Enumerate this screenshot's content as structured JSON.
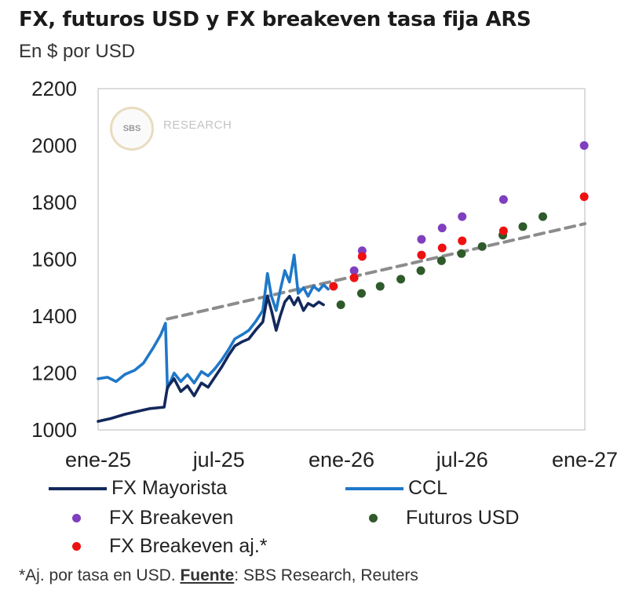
{
  "title": "FX, futuros USD y FX breakeven tasa fija ARS",
  "subtitle": "En $ por USD",
  "watermark": {
    "logo": "SBS",
    "text": "RESEARCH"
  },
  "footnote": {
    "prefix": "*Aj. por tasa en USD. ",
    "source_label": "Fuente",
    "source_text": ": SBS Research, Reuters"
  },
  "colors": {
    "fx_mayorista": "#13285c",
    "ccl": "#1f78c8",
    "fx_breakeven": "#7f3fbf",
    "futuros": "#2f5a2a",
    "fx_breakeven_aj": "#ee1111",
    "trend": "#8c8c8c",
    "axis": "#d0d0d0"
  },
  "chart_data": {
    "type": "line",
    "x_axis": {
      "ticks": [
        "ene-25",
        "jul-25",
        "ene-26",
        "jul-26",
        "ene-27"
      ],
      "tick_dates": [
        "2025-01-01",
        "2025-07-01",
        "2026-01-01",
        "2026-07-01",
        "2027-01-01"
      ],
      "range": [
        "2025-01-01",
        "2027-01-01"
      ]
    },
    "y_axis": {
      "ticks": [
        1000,
        1200,
        1400,
        1600,
        1800,
        2000,
        2200
      ],
      "range": [
        1000,
        2200
      ]
    },
    "grid": false,
    "legend_placement": "bottom",
    "series": [
      {
        "name": "FX Mayorista",
        "type": "line",
        "points": [
          [
            "2025-01-01",
            1030
          ],
          [
            "2025-01-20",
            1040
          ],
          [
            "2025-02-10",
            1055
          ],
          [
            "2025-03-01",
            1065
          ],
          [
            "2025-03-20",
            1075
          ],
          [
            "2025-04-10",
            1080
          ],
          [
            "2025-04-15",
            1150
          ],
          [
            "2025-04-25",
            1180
          ],
          [
            "2025-05-05",
            1135
          ],
          [
            "2025-05-15",
            1155
          ],
          [
            "2025-05-25",
            1120
          ],
          [
            "2025-06-05",
            1165
          ],
          [
            "2025-06-15",
            1150
          ],
          [
            "2025-06-25",
            1185
          ],
          [
            "2025-07-05",
            1220
          ],
          [
            "2025-07-15",
            1260
          ],
          [
            "2025-07-25",
            1295
          ],
          [
            "2025-08-05",
            1310
          ],
          [
            "2025-08-15",
            1320
          ],
          [
            "2025-08-25",
            1350
          ],
          [
            "2025-09-05",
            1380
          ],
          [
            "2025-09-12",
            1470
          ],
          [
            "2025-09-18",
            1420
          ],
          [
            "2025-09-25",
            1350
          ],
          [
            "2025-10-01",
            1400
          ],
          [
            "2025-10-08",
            1450
          ],
          [
            "2025-10-15",
            1470
          ],
          [
            "2025-10-22",
            1440
          ],
          [
            "2025-10-28",
            1465
          ],
          [
            "2025-11-05",
            1420
          ],
          [
            "2025-11-12",
            1445
          ],
          [
            "2025-11-20",
            1435
          ],
          [
            "2025-11-28",
            1450
          ],
          [
            "2025-12-05",
            1440
          ]
        ]
      },
      {
        "name": "CCL",
        "type": "line",
        "points": [
          [
            "2025-01-01",
            1180
          ],
          [
            "2025-01-15",
            1185
          ],
          [
            "2025-01-28",
            1170
          ],
          [
            "2025-02-10",
            1195
          ],
          [
            "2025-02-25",
            1210
          ],
          [
            "2025-03-10",
            1235
          ],
          [
            "2025-03-25",
            1290
          ],
          [
            "2025-04-05",
            1335
          ],
          [
            "2025-04-12",
            1375
          ],
          [
            "2025-04-15",
            1145
          ],
          [
            "2025-04-25",
            1200
          ],
          [
            "2025-05-05",
            1170
          ],
          [
            "2025-05-15",
            1195
          ],
          [
            "2025-05-25",
            1165
          ],
          [
            "2025-06-05",
            1205
          ],
          [
            "2025-06-15",
            1190
          ],
          [
            "2025-06-25",
            1215
          ],
          [
            "2025-07-05",
            1245
          ],
          [
            "2025-07-15",
            1280
          ],
          [
            "2025-07-25",
            1320
          ],
          [
            "2025-08-05",
            1335
          ],
          [
            "2025-08-15",
            1350
          ],
          [
            "2025-08-25",
            1380
          ],
          [
            "2025-09-05",
            1420
          ],
          [
            "2025-09-12",
            1550
          ],
          [
            "2025-09-18",
            1470
          ],
          [
            "2025-09-25",
            1420
          ],
          [
            "2025-10-01",
            1490
          ],
          [
            "2025-10-08",
            1560
          ],
          [
            "2025-10-15",
            1520
          ],
          [
            "2025-10-22",
            1615
          ],
          [
            "2025-10-28",
            1480
          ],
          [
            "2025-11-05",
            1500
          ],
          [
            "2025-11-12",
            1470
          ],
          [
            "2025-11-20",
            1505
          ],
          [
            "2025-11-28",
            1490
          ],
          [
            "2025-12-05",
            1510
          ],
          [
            "2025-12-12",
            1495
          ]
        ]
      },
      {
        "name": "FX Breakeven",
        "type": "scatter",
        "points": [
          [
            "2026-01-20",
            1560
          ],
          [
            "2026-02-01",
            1630
          ],
          [
            "2026-05-01",
            1670
          ],
          [
            "2026-06-01",
            1710
          ],
          [
            "2026-07-01",
            1750
          ],
          [
            "2026-09-01",
            1810
          ],
          [
            "2026-12-31",
            2000
          ]
        ]
      },
      {
        "name": "Futuros USD",
        "type": "scatter",
        "points": [
          [
            "2025-12-31",
            1440
          ],
          [
            "2026-01-31",
            1480
          ],
          [
            "2026-02-28",
            1505
          ],
          [
            "2026-03-31",
            1530
          ],
          [
            "2026-04-30",
            1560
          ],
          [
            "2026-05-31",
            1595
          ],
          [
            "2026-06-30",
            1620
          ],
          [
            "2026-07-31",
            1645
          ],
          [
            "2026-08-31",
            1685
          ],
          [
            "2026-09-30",
            1715
          ],
          [
            "2026-10-30",
            1750
          ]
        ]
      },
      {
        "name": "FX Breakeven aj.*",
        "type": "scatter",
        "points": [
          [
            "2025-12-20",
            1505
          ],
          [
            "2026-01-20",
            1535
          ],
          [
            "2026-02-01",
            1610
          ],
          [
            "2026-05-01",
            1615
          ],
          [
            "2026-06-01",
            1640
          ],
          [
            "2026-07-01",
            1665
          ],
          [
            "2026-09-01",
            1700
          ],
          [
            "2026-12-31",
            1820
          ]
        ]
      },
      {
        "type": "dashed",
        "points": [
          [
            "2025-04-15",
            1390
          ],
          [
            "2027-01-01",
            1725
          ]
        ]
      }
    ]
  }
}
